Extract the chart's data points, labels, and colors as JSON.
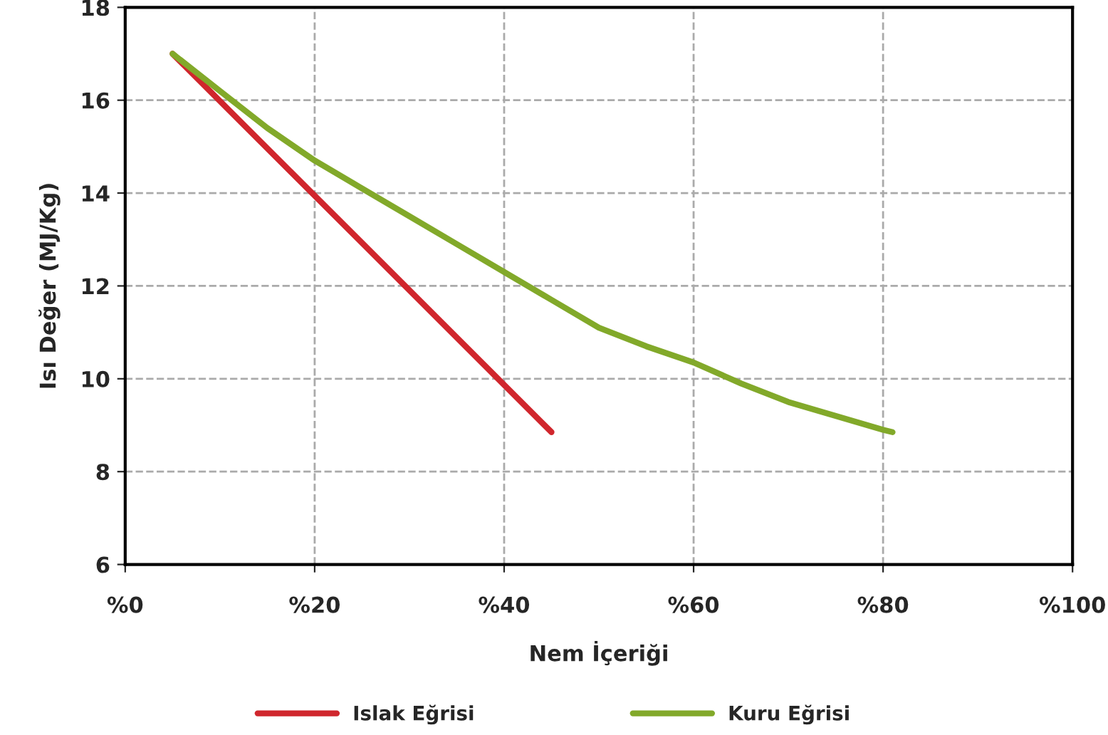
{
  "chart_data": {
    "type": "line",
    "xlabel": "Nem İçeriği",
    "ylabel": "Isı Değer (MJ/Kg)",
    "xlim": [
      0,
      100
    ],
    "ylim": [
      6,
      18
    ],
    "xticks": [
      {
        "value": 0,
        "label": "%0"
      },
      {
        "value": 20,
        "label": "%20"
      },
      {
        "value": 40,
        "label": "%40"
      },
      {
        "value": 60,
        "label": "%60"
      },
      {
        "value": 80,
        "label": "%80"
      },
      {
        "value": 100,
        "label": "%100"
      }
    ],
    "yticks": [
      6,
      8,
      10,
      12,
      14,
      16,
      18
    ],
    "grid": true,
    "legend": "bottom",
    "line_style": "solid",
    "marker": "none",
    "series": [
      {
        "name": "Islak Eğrisi",
        "color": "#d0262d",
        "x": [
          5,
          45
        ],
        "values": [
          17,
          8.85
        ]
      },
      {
        "name": "Kuru Eğrisi",
        "color": "#82a92a",
        "x": [
          5,
          10,
          15,
          20,
          25,
          30,
          35,
          40,
          45,
          50,
          55,
          60,
          65,
          70,
          75,
          80,
          81
        ],
        "values": [
          17,
          16.2,
          15.4,
          14.7,
          14.1,
          13.5,
          12.9,
          12.3,
          11.7,
          11.1,
          10.7,
          10.35,
          9.9,
          9.5,
          9.2,
          8.9,
          8.85
        ]
      }
    ]
  }
}
